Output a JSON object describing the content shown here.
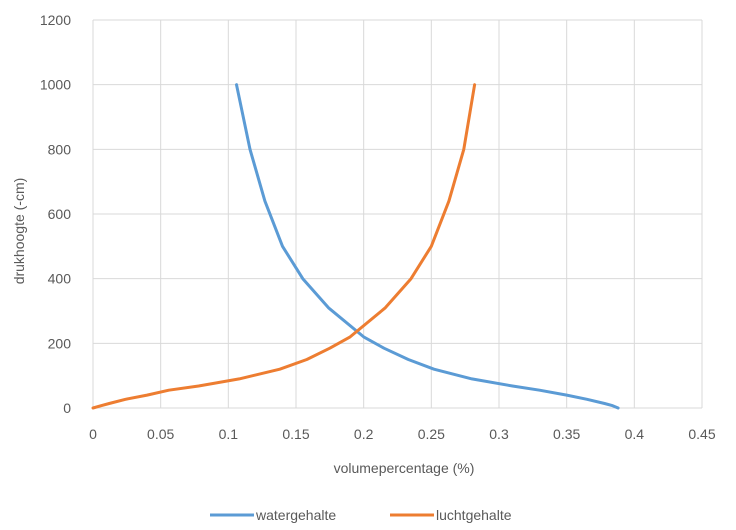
{
  "chart_data": {
    "type": "line",
    "title": "",
    "xlabel": "volumepercentage (%)",
    "ylabel": "drukhoogte (-cm)",
    "xlim": [
      0,
      0.45
    ],
    "ylim": [
      0,
      1200
    ],
    "x_ticks": [
      0,
      0.05,
      0.1,
      0.15,
      0.2,
      0.25,
      0.3,
      0.35,
      0.4,
      0.45
    ],
    "x_tick_labels": [
      "0",
      "0.05",
      "0.1",
      "0.15",
      "0.2",
      "0.25",
      "0.3",
      "0.35",
      "0.4",
      "0.45"
    ],
    "y_ticks": [
      0,
      200,
      400,
      600,
      800,
      1000,
      1200
    ],
    "y_tick_labels": [
      "0",
      "200",
      "400",
      "600",
      "800",
      "1000",
      "1200"
    ],
    "grid": true,
    "legend_position": "bottom",
    "series": [
      {
        "name": "watergehalte",
        "color": "#5B9BD5",
        "points": [
          [
            0.106,
            1000
          ],
          [
            0.116,
            800
          ],
          [
            0.127,
            640
          ],
          [
            0.14,
            500
          ],
          [
            0.155,
            400
          ],
          [
            0.174,
            310
          ],
          [
            0.2,
            220
          ],
          [
            0.215,
            185
          ],
          [
            0.233,
            150
          ],
          [
            0.252,
            120
          ],
          [
            0.28,
            90
          ],
          [
            0.31,
            68
          ],
          [
            0.33,
            55
          ],
          [
            0.35,
            40
          ],
          [
            0.365,
            27
          ],
          [
            0.378,
            14
          ],
          [
            0.384,
            7
          ],
          [
            0.388,
            0
          ]
        ]
      },
      {
        "name": "luchtgehalte",
        "color": "#ED7D31",
        "points": [
          [
            0,
            0
          ],
          [
            0.006,
            7
          ],
          [
            0.012,
            14
          ],
          [
            0.024,
            27
          ],
          [
            0.04,
            40
          ],
          [
            0.056,
            55
          ],
          [
            0.078,
            68
          ],
          [
            0.108,
            90
          ],
          [
            0.138,
            120
          ],
          [
            0.158,
            150
          ],
          [
            0.175,
            185
          ],
          [
            0.19,
            220
          ],
          [
            0.216,
            310
          ],
          [
            0.235,
            400
          ],
          [
            0.25,
            500
          ],
          [
            0.263,
            640
          ],
          [
            0.274,
            800
          ],
          [
            0.282,
            1000
          ]
        ]
      }
    ]
  }
}
